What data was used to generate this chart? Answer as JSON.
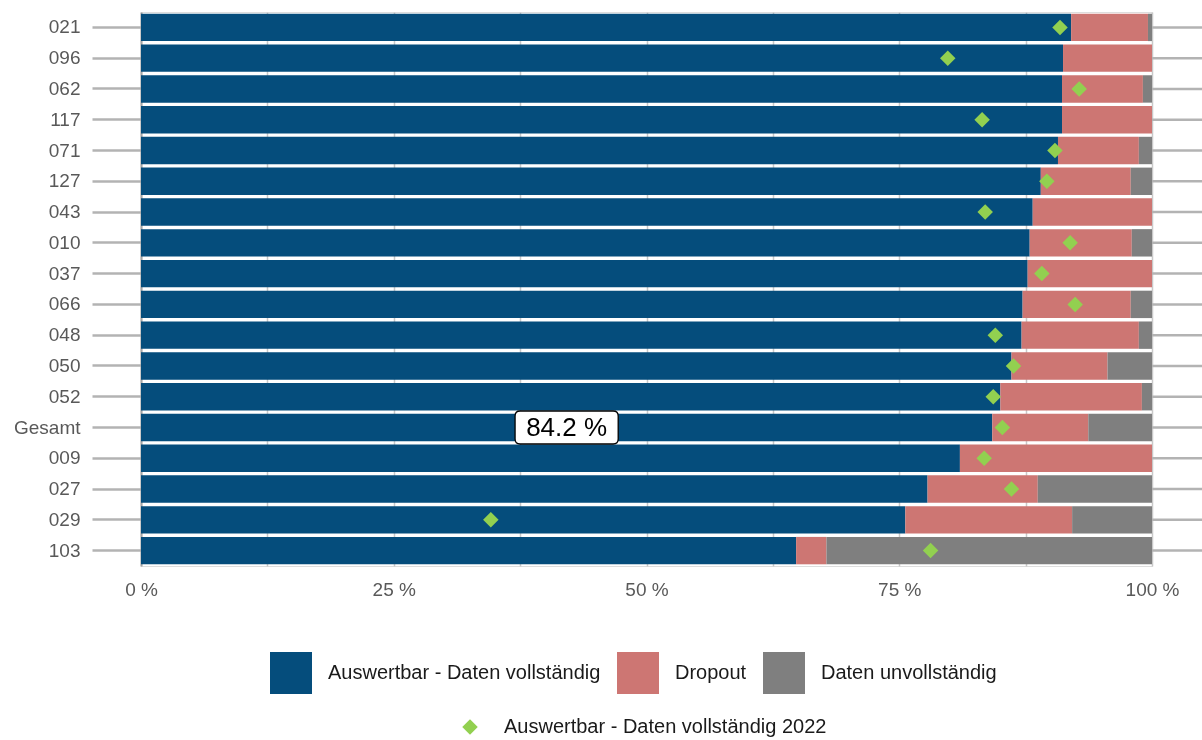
{
  "chart_data": {
    "type": "bar",
    "orientation": "horizontal",
    "stacked": true,
    "categories": [
      "021",
      "096",
      "062",
      "117",
      "071",
      "127",
      "043",
      "010",
      "037",
      "066",
      "048",
      "050",
      "052",
      "Gesamt",
      "009",
      "027",
      "029",
      "103"
    ],
    "series": [
      {
        "name": "Auswertbar - Daten vollständig",
        "color": "#054d7c",
        "values": [
          92.0,
          91.2,
          91.1,
          91.1,
          90.7,
          89.0,
          88.2,
          87.9,
          87.7,
          87.2,
          87.1,
          86.1,
          85.0,
          84.2,
          81.0,
          77.8,
          75.6,
          64.8
        ],
        "value_labels": [
          null,
          null,
          null,
          null,
          null,
          null,
          null,
          null,
          null,
          null,
          null,
          null,
          null,
          "84.2 %",
          null,
          null,
          null,
          null
        ]
      },
      {
        "name": "Dropout",
        "color": "#cd7673",
        "values": [
          7.6,
          8.8,
          8.0,
          8.9,
          8.0,
          8.9,
          11.8,
          10.1,
          12.3,
          10.7,
          11.6,
          9.5,
          14.0,
          9.5,
          19.0,
          10.9,
          16.5,
          3.0
        ]
      },
      {
        "name": "Daten unvollständig",
        "color": "#7f7f7f",
        "values": [
          0.4,
          null,
          0.9,
          null,
          1.3,
          2.1,
          null,
          2.0,
          null,
          2.1,
          1.3,
          4.4,
          1.0,
          6.3,
          null,
          11.3,
          7.9,
          32.2
        ]
      },
      {
        "name": "Auswertbar - Daten vollständig 2022",
        "type": "scatter",
        "marker": "diamond",
        "color": "#92d050",
        "values": [
          90.9,
          79.8,
          92.8,
          83.2,
          90.4,
          89.6,
          83.5,
          91.9,
          89.1,
          92.4,
          84.5,
          86.3,
          84.3,
          85.2,
          83.4,
          86.1,
          34.6,
          78.1
        ]
      }
    ],
    "xlim": [
      0,
      100
    ],
    "xticks": [
      {
        "value": 0,
        "label": "0 %"
      },
      {
        "value": 12.5,
        "label": null
      },
      {
        "value": 25,
        "label": "25 %"
      },
      {
        "value": 37.5,
        "label": null
      },
      {
        "value": 50,
        "label": "50 %"
      },
      {
        "value": 62.5,
        "label": null
      },
      {
        "value": 75,
        "label": "75 %"
      },
      {
        "value": 87.5,
        "label": null
      },
      {
        "value": 100,
        "label": "100 %"
      }
    ],
    "grid": "x",
    "legend": "bottom"
  }
}
